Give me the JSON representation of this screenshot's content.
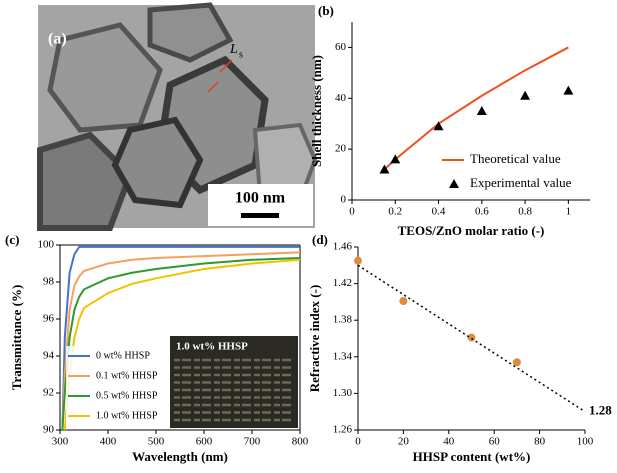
{
  "image_panel": {
    "panel_label": "(a)",
    "annotation": "L",
    "annotation_sub": "s",
    "scale_bar": "100 nm"
  },
  "chart_data": [
    {
      "type": "line",
      "panel_label": "(b)",
      "x_label": "TEOS/ZnO molar ratio (-)",
      "y_label": "Shell thickness (nm)",
      "x": [
        0.15,
        0.2,
        0.4,
        0.6,
        0.8,
        1
      ],
      "series": [
        {
          "name": "Theoretical value",
          "color": "#f0501e",
          "mode": "line",
          "values": [
            12,
            16,
            30,
            41,
            51,
            60
          ]
        },
        {
          "name": "Experimental value",
          "color": "#000000",
          "mode": "marker",
          "marker": "triangle",
          "values": [
            12,
            16,
            29,
            35,
            41,
            43
          ]
        }
      ],
      "xlim": [
        0,
        1.1
      ],
      "xticks": [
        0,
        0.2,
        0.4,
        0.6,
        0.8,
        1
      ],
      "ylim": [
        0,
        70
      ],
      "yticks": [
        0,
        20,
        40,
        60
      ],
      "legend": "lower right",
      "box": false
    },
    {
      "type": "line",
      "panel_label": "(c)",
      "x_label": "Wavelength (nm)",
      "y_label": "Transmittance (%)",
      "x": [
        305,
        310,
        320,
        330,
        340,
        350,
        400,
        450,
        500,
        600,
        700,
        800
      ],
      "series": [
        {
          "name": "0 wt% HHSP",
          "color": "#4472c4",
          "mode": "line",
          "values": [
            90,
            95,
            98.5,
            99.5,
            99.9,
            99.9,
            99.9,
            99.9,
            99.9,
            99.9,
            99.9,
            99.9
          ]
        },
        {
          "name": "0.1 wt% HHSP",
          "color": "#f4a060",
          "mode": "line",
          "values": [
            90,
            93,
            96.5,
            97.8,
            98.3,
            98.6,
            99,
            99.2,
            99.3,
            99.4,
            99.5,
            99.6
          ]
        },
        {
          "name": "0.5 wt% HHSP",
          "color": "#2e9a2e",
          "mode": "line",
          "values": [
            90,
            92,
            95,
            96.5,
            97.2,
            97.6,
            98.2,
            98.5,
            98.7,
            99,
            99.2,
            99.3
          ]
        },
        {
          "name": "1.0 wt% HHSP",
          "color": "#f2c200",
          "mode": "line",
          "values": [
            null,
            90,
            93,
            95,
            96,
            96.6,
            97.4,
            97.9,
            98.2,
            98.7,
            99,
            99.2
          ]
        }
      ],
      "xlim": [
        300,
        800
      ],
      "xticks": [
        300,
        400,
        500,
        600,
        700,
        800
      ],
      "ylim": [
        90,
        100
      ],
      "yticks": [
        90,
        92,
        94,
        96,
        98,
        100
      ],
      "legend": "lower left",
      "box": true,
      "inset_label": "1.0 wt% HHSP"
    },
    {
      "type": "line",
      "panel_label": "(d)",
      "x_label": "HHSP content (wt%)",
      "y_label": "Refractive index (-)",
      "series": [
        {
          "color": "#e08a3c",
          "mode": "marker",
          "marker": "circle",
          "x": [
            0,
            20,
            50,
            70
          ],
          "values": [
            1.445,
            1.401,
            1.361,
            1.334
          ]
        },
        {
          "color": "#000000",
          "mode": "dotted",
          "x": [
            0,
            100
          ],
          "values": [
            1.44,
            1.28
          ]
        }
      ],
      "annotation": "1.28",
      "xlim": [
        0,
        100
      ],
      "xticks": [
        0,
        20,
        40,
        60,
        80,
        100
      ],
      "ylim": [
        1.26,
        1.46
      ],
      "yticks": [
        1.26,
        {
          "value": 1.3,
          "label": "1.30"
        },
        1.34,
        1.38,
        1.42,
        1.46
      ],
      "box": false
    }
  ]
}
